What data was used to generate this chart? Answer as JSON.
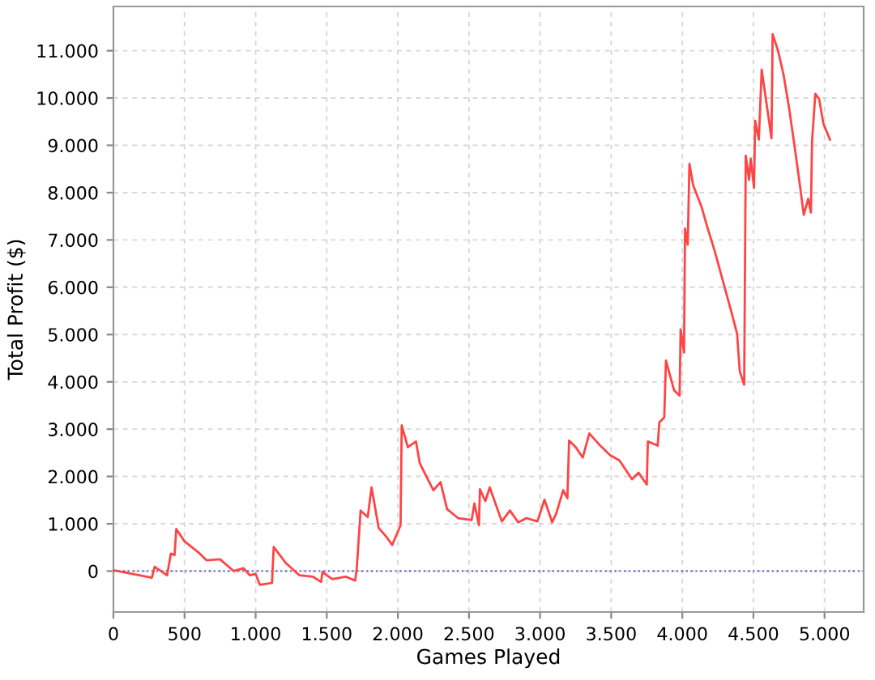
{
  "chart_data": {
    "type": "line",
    "xlabel": "Games Played",
    "ylabel": "Total Profit ($)",
    "xlim": [
      0,
      5275
    ],
    "ylim": [
      -865,
      11935
    ],
    "xticks": [
      0,
      {
        "value": 500,
        "label": "500"
      },
      {
        "value": 1000,
        "label": "1.000"
      },
      {
        "value": 1500,
        "label": "1.500"
      },
      {
        "value": 2000,
        "label": "2.000"
      },
      {
        "value": 2500,
        "label": "2.500"
      },
      {
        "value": 3000,
        "label": "3.000"
      },
      {
        "value": 3500,
        "label": "3.500"
      },
      {
        "value": 4000,
        "label": "4.000"
      },
      {
        "value": 4500,
        "label": "4.500"
      },
      {
        "value": 5000,
        "label": "5.000"
      }
    ],
    "yticks": [
      0,
      {
        "value": 1000,
        "label": "1.000"
      },
      {
        "value": 2000,
        "label": "2.000"
      },
      {
        "value": 3000,
        "label": "3.000"
      },
      {
        "value": 4000,
        "label": "4.000"
      },
      {
        "value": 5000,
        "label": "5.000"
      },
      {
        "value": 6000,
        "label": "6.000"
      },
      {
        "value": 7000,
        "label": "7.000"
      },
      {
        "value": 8000,
        "label": "8.000"
      },
      {
        "value": 9000,
        "label": "9.000"
      },
      {
        "value": 10000,
        "label": "10.000"
      },
      {
        "value": 11000,
        "label": "11.000"
      }
    ],
    "grid": true,
    "line_style": "solid",
    "marker": "none",
    "ref_lines": [
      {
        "axis": "y",
        "value": 0,
        "color": "#6666cc",
        "line_style": "dotted"
      }
    ],
    "series": [
      {
        "color": "#ff4444",
        "x": [
          0,
          270,
          290,
          377,
          404,
          430,
          442,
          500,
          596,
          654,
          750,
          846,
          915,
          960,
          1000,
          1030,
          1115,
          1127,
          1212,
          1308,
          1404,
          1460,
          1470,
          1538,
          1635,
          1700,
          1711,
          1738,
          1788,
          1815,
          1865,
          1923,
          1960,
          2019,
          2027,
          2070,
          2127,
          2154,
          2192,
          2250,
          2300,
          2346,
          2423,
          2519,
          2538,
          2570,
          2577,
          2615,
          2646,
          2673,
          2731,
          2788,
          2846,
          2904,
          2981,
          3031,
          3085,
          3115,
          3162,
          3192,
          3204,
          3250,
          3300,
          3346,
          3423,
          3492,
          3558,
          3646,
          3692,
          3750,
          3758,
          3827,
          3838,
          3873,
          3885,
          3942,
          3981,
          3988,
          4012,
          4019,
          4038,
          4050,
          4077,
          4135,
          4173,
          4231,
          4288,
          4346,
          4385,
          4404,
          4435,
          4446,
          4469,
          4481,
          4504,
          4512,
          4538,
          4558,
          4596,
          4627,
          4635,
          4673,
          4712,
          4750,
          4788,
          4827,
          4854,
          4885,
          4904,
          4912,
          4935,
          4962,
          4992,
          5038
        ],
        "values": [
          20,
          -140,
          90,
          -90,
          370,
          340,
          890,
          630,
          400,
          230,
          250,
          0,
          60,
          -90,
          -60,
          -290,
          -250,
          510,
          170,
          -90,
          -120,
          -230,
          -20,
          -170,
          -120,
          -200,
          60,
          1280,
          1140,
          1770,
          910,
          710,
          550,
          970,
          3080,
          2620,
          2740,
          2280,
          2050,
          1710,
          1880,
          1310,
          1120,
          1080,
          1430,
          970,
          1730,
          1480,
          1770,
          1540,
          1050,
          1280,
          1030,
          1120,
          1050,
          1510,
          1030,
          1230,
          1710,
          1540,
          2760,
          2620,
          2400,
          2910,
          2650,
          2450,
          2340,
          1940,
          2080,
          1830,
          2740,
          2650,
          3140,
          3250,
          4450,
          3820,
          3710,
          5110,
          4620,
          7240,
          6900,
          8610,
          8150,
          7700,
          7300,
          6730,
          6100,
          5470,
          5020,
          4220,
          3940,
          8780,
          8270,
          8720,
          8100,
          9520,
          9120,
          10600,
          9800,
          9150,
          11350,
          11000,
          10490,
          9800,
          9010,
          8150,
          7530,
          7870,
          7580,
          9070,
          10090,
          9980,
          9460,
          9120
        ]
      }
    ]
  }
}
